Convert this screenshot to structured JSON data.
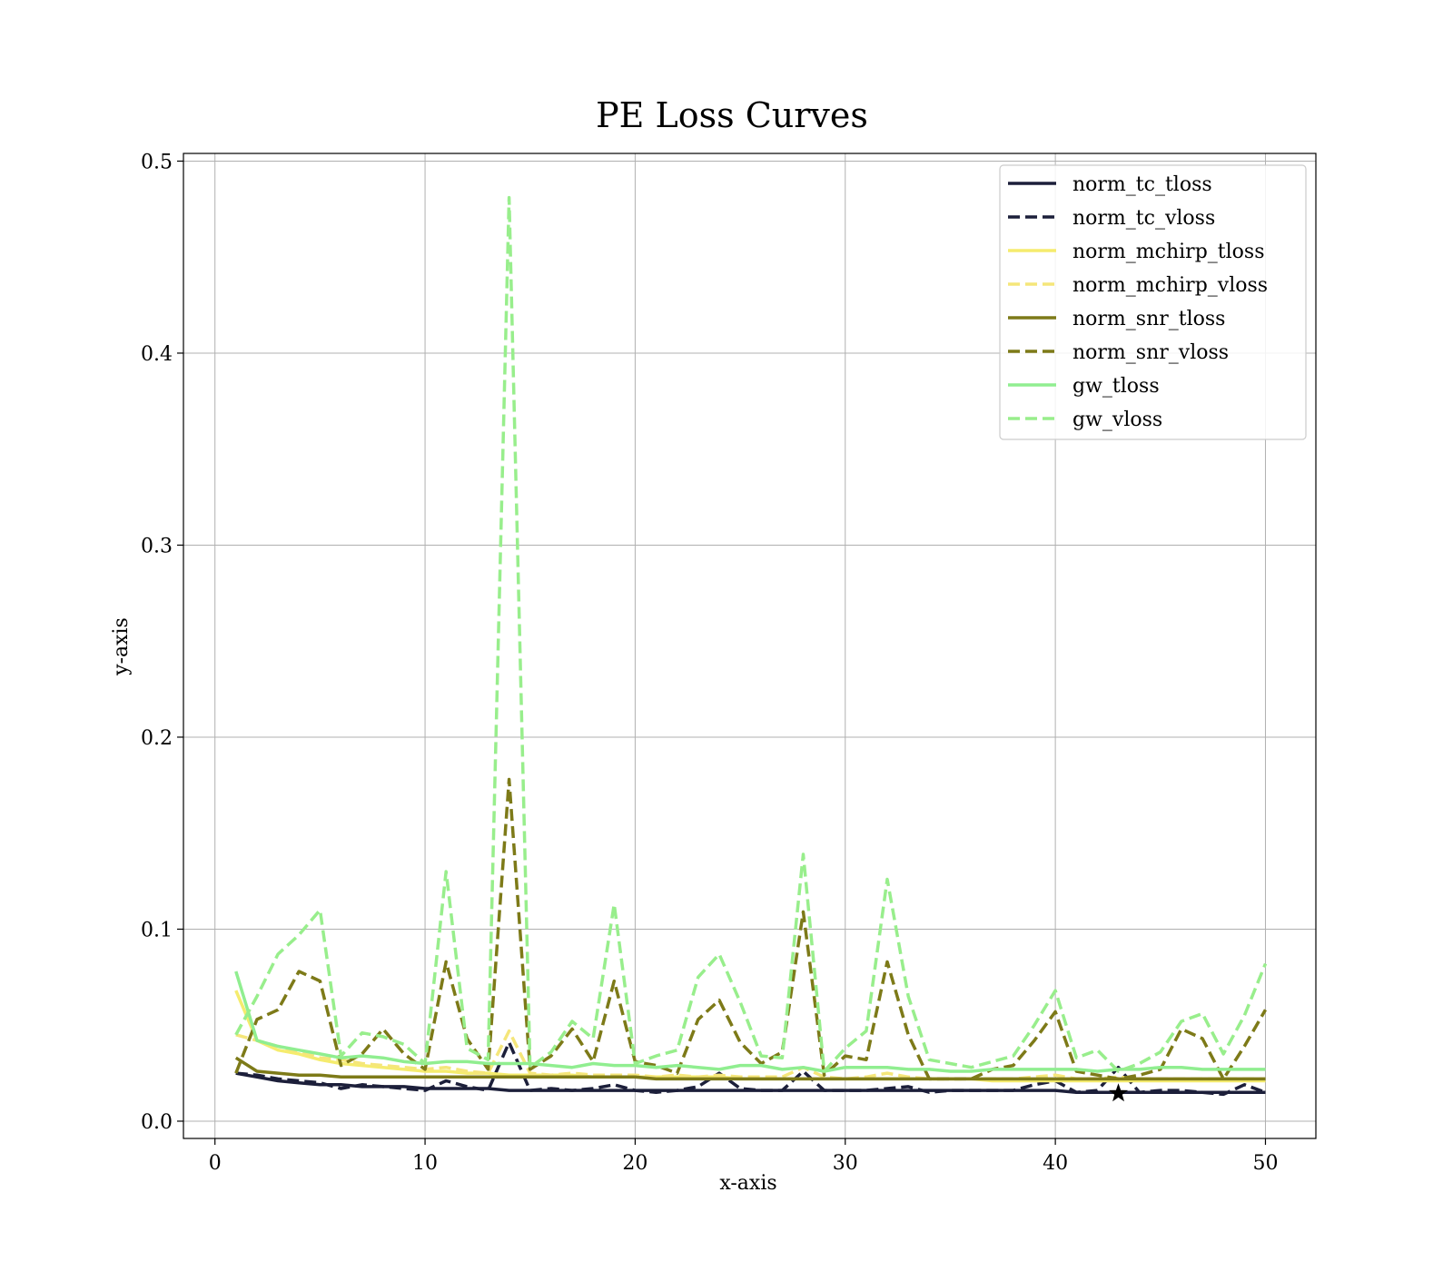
{
  "chart_data": {
    "type": "line",
    "title": "PE Loss Curves",
    "xlabel": "x-axis",
    "ylabel": "y-axis",
    "xlim": [
      -1.5,
      52.4
    ],
    "ylim": [
      -0.009,
      0.504
    ],
    "xticks": [
      0,
      10,
      20,
      30,
      40,
      50
    ],
    "yticks": [
      0.0,
      0.1,
      0.2,
      0.3,
      0.4,
      0.5
    ],
    "xtick_labels": [
      "0",
      "10",
      "20",
      "30",
      "40",
      "50"
    ],
    "ytick_labels": [
      "0.0",
      "0.1",
      "0.2",
      "0.3",
      "0.4",
      "0.5"
    ],
    "grid": true,
    "legend_position": "top-right",
    "x": [
      1,
      2,
      3,
      4,
      5,
      6,
      7,
      8,
      9,
      10,
      11,
      12,
      13,
      14,
      15,
      16,
      17,
      18,
      19,
      20,
      21,
      22,
      23,
      24,
      25,
      26,
      27,
      28,
      29,
      30,
      31,
      32,
      33,
      34,
      35,
      36,
      37,
      38,
      39,
      40,
      41,
      42,
      43,
      44,
      45,
      46,
      47,
      48,
      49,
      50
    ],
    "series": [
      {
        "name": "norm_tc_tloss",
        "color": "#1c1f3a",
        "dashed": false,
        "values": [
          0.025,
          0.023,
          0.021,
          0.02,
          0.019,
          0.019,
          0.018,
          0.018,
          0.018,
          0.017,
          0.017,
          0.017,
          0.017,
          0.016,
          0.016,
          0.016,
          0.016,
          0.016,
          0.016,
          0.016,
          0.016,
          0.016,
          0.016,
          0.016,
          0.016,
          0.016,
          0.016,
          0.016,
          0.016,
          0.016,
          0.016,
          0.016,
          0.016,
          0.016,
          0.016,
          0.016,
          0.016,
          0.016,
          0.016,
          0.016,
          0.015,
          0.015,
          0.015,
          0.015,
          0.015,
          0.015,
          0.015,
          0.015,
          0.015,
          0.015
        ]
      },
      {
        "name": "norm_tc_vloss",
        "color": "#1c1f3a",
        "dashed": true,
        "values": [
          0.025,
          0.024,
          0.022,
          0.021,
          0.02,
          0.017,
          0.019,
          0.018,
          0.017,
          0.016,
          0.021,
          0.018,
          0.016,
          0.041,
          0.016,
          0.017,
          0.016,
          0.017,
          0.019,
          0.016,
          0.015,
          0.016,
          0.018,
          0.025,
          0.017,
          0.016,
          0.016,
          0.026,
          0.016,
          0.016,
          0.016,
          0.017,
          0.018,
          0.015,
          0.016,
          0.016,
          0.016,
          0.016,
          0.019,
          0.021,
          0.015,
          0.016,
          0.028,
          0.015,
          0.016,
          0.016,
          0.015,
          0.014,
          0.019,
          0.015
        ]
      },
      {
        "name": "norm_mchirp_tloss",
        "color": "#f5ec6e",
        "dashed": false,
        "values": [
          0.068,
          0.042,
          0.037,
          0.035,
          0.032,
          0.03,
          0.029,
          0.028,
          0.027,
          0.026,
          0.026,
          0.025,
          0.025,
          0.024,
          0.024,
          0.024,
          0.024,
          0.023,
          0.023,
          0.023,
          0.023,
          0.023,
          0.023,
          0.023,
          0.022,
          0.022,
          0.022,
          0.022,
          0.022,
          0.022,
          0.022,
          0.022,
          0.022,
          0.022,
          0.022,
          0.022,
          0.021,
          0.021,
          0.021,
          0.021,
          0.021,
          0.021,
          0.021,
          0.021,
          0.021,
          0.021,
          0.021,
          0.021,
          0.021,
          0.021
        ]
      },
      {
        "name": "norm_mchirp_vloss",
        "color": "#f5e67a",
        "dashed": true,
        "values": [
          0.045,
          0.042,
          0.039,
          0.036,
          0.033,
          0.032,
          0.03,
          0.029,
          0.028,
          0.027,
          0.028,
          0.026,
          0.025,
          0.047,
          0.025,
          0.024,
          0.025,
          0.024,
          0.024,
          0.024,
          0.023,
          0.024,
          0.023,
          0.024,
          0.023,
          0.023,
          0.023,
          0.028,
          0.023,
          0.022,
          0.023,
          0.025,
          0.023,
          0.022,
          0.022,
          0.022,
          0.022,
          0.022,
          0.023,
          0.024,
          0.022,
          0.022,
          0.023,
          0.022,
          0.022,
          0.022,
          0.022,
          0.022,
          0.022,
          0.022
        ]
      },
      {
        "name": "norm_snr_tloss",
        "color": "#7d7a18",
        "dashed": false,
        "values": [
          0.033,
          0.026,
          0.025,
          0.024,
          0.024,
          0.023,
          0.023,
          0.023,
          0.023,
          0.023,
          0.023,
          0.023,
          0.023,
          0.023,
          0.023,
          0.023,
          0.023,
          0.023,
          0.023,
          0.023,
          0.022,
          0.022,
          0.022,
          0.022,
          0.022,
          0.022,
          0.022,
          0.022,
          0.022,
          0.022,
          0.022,
          0.022,
          0.022,
          0.022,
          0.022,
          0.022,
          0.022,
          0.022,
          0.022,
          0.022,
          0.022,
          0.022,
          0.022,
          0.022,
          0.022,
          0.022,
          0.022,
          0.022,
          0.022,
          0.022
        ]
      },
      {
        "name": "norm_snr_vloss",
        "color": "#7d7a18",
        "dashed": true,
        "values": [
          0.025,
          0.053,
          0.058,
          0.078,
          0.073,
          0.029,
          0.035,
          0.048,
          0.035,
          0.027,
          0.083,
          0.043,
          0.027,
          0.178,
          0.027,
          0.034,
          0.048,
          0.031,
          0.073,
          0.031,
          0.029,
          0.025,
          0.053,
          0.063,
          0.041,
          0.03,
          0.036,
          0.109,
          0.024,
          0.034,
          0.032,
          0.083,
          0.045,
          0.022,
          0.022,
          0.022,
          0.027,
          0.029,
          0.042,
          0.057,
          0.026,
          0.024,
          0.022,
          0.024,
          0.027,
          0.048,
          0.043,
          0.022,
          0.039,
          0.058
        ]
      },
      {
        "name": "gw_tloss",
        "color": "#90ee90",
        "dashed": false,
        "values": [
          0.078,
          0.042,
          0.039,
          0.037,
          0.035,
          0.033,
          0.034,
          0.033,
          0.031,
          0.03,
          0.031,
          0.031,
          0.03,
          0.03,
          0.03,
          0.029,
          0.028,
          0.03,
          0.029,
          0.029,
          0.028,
          0.029,
          0.028,
          0.027,
          0.029,
          0.029,
          0.027,
          0.028,
          0.026,
          0.028,
          0.028,
          0.028,
          0.027,
          0.027,
          0.026,
          0.026,
          0.027,
          0.027,
          0.027,
          0.027,
          0.027,
          0.026,
          0.027,
          0.027,
          0.028,
          0.028,
          0.027,
          0.027,
          0.027,
          0.027
        ]
      },
      {
        "name": "gw_vloss",
        "color": "#98ee8c",
        "dashed": true,
        "values": [
          0.045,
          0.065,
          0.087,
          0.097,
          0.11,
          0.034,
          0.046,
          0.044,
          0.04,
          0.03,
          0.13,
          0.038,
          0.032,
          0.481,
          0.028,
          0.036,
          0.052,
          0.043,
          0.113,
          0.03,
          0.034,
          0.037,
          0.075,
          0.087,
          0.062,
          0.034,
          0.033,
          0.139,
          0.026,
          0.038,
          0.047,
          0.126,
          0.065,
          0.032,
          0.03,
          0.028,
          0.031,
          0.034,
          0.05,
          0.068,
          0.033,
          0.037,
          0.026,
          0.03,
          0.036,
          0.052,
          0.056,
          0.035,
          0.055,
          0.082
        ]
      }
    ],
    "marker": {
      "name": "best-epoch-star",
      "x": 43,
      "y": 0.0145,
      "color": "#000000"
    }
  }
}
